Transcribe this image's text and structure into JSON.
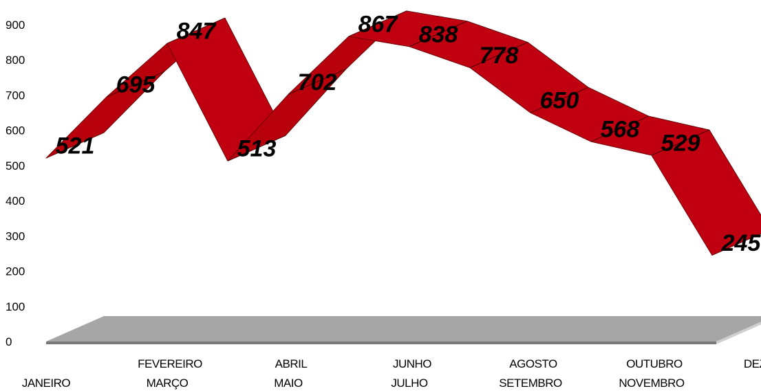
{
  "chart_data": {
    "type": "line",
    "title": "",
    "xlabel": "",
    "ylabel": "",
    "categories": [
      "JANEIRO",
      "FEVEREIRO",
      "MARÇO",
      "ABRIL",
      "MAIO",
      "JUNHO",
      "JULHO",
      "AGOSTO",
      "SETEMBRO",
      "OUTUBRO",
      "NOVEMBRO",
      "DEZEMBRO"
    ],
    "values": [
      521,
      695,
      847,
      513,
      702,
      867,
      838,
      778,
      650,
      568,
      529,
      245
    ],
    "ylim": [
      0,
      900
    ],
    "yticks": [
      0,
      100,
      200,
      300,
      400,
      500,
      600,
      700,
      800,
      900
    ],
    "grid": false,
    "legend": "none",
    "style": "3d-ribbon",
    "colors": {
      "ribbon_front": "#c00010",
      "ribbon_top": "#b8000c",
      "edge": "#4a0000",
      "floor": "#a6a6a6",
      "floor_edge": "#7a7a7a"
    }
  }
}
